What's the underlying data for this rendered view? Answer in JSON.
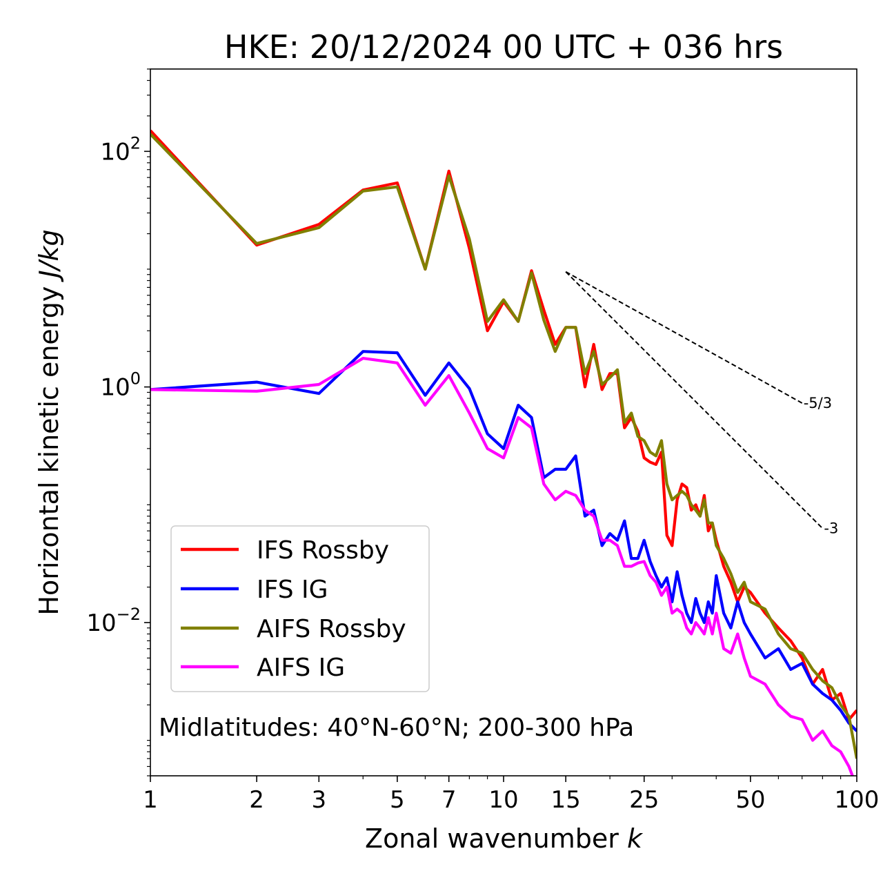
{
  "chart_data": {
    "type": "line",
    "title": "HKE: 20/12/2024 00 UTC + 036 hrs",
    "xlabel": "Zonal wavenumber ",
    "xlabel_italic": "k",
    "ylabel": "Horizontal kinetic energy ",
    "ylabel_italic": "J/kg",
    "xscale": "log",
    "yscale": "log",
    "xlim": [
      1,
      100
    ],
    "ylim": [
      0.0005,
      500
    ],
    "x_ticks": [
      1,
      2,
      3,
      5,
      7,
      10,
      15,
      25,
      50,
      100
    ],
    "x_tick_labels": [
      "1",
      "2",
      "3",
      "5",
      "7",
      "10",
      "15",
      "25",
      "50",
      "100"
    ],
    "y_ticks": [
      100,
      1,
      0.01
    ],
    "y_tick_labels": [
      {
        "base": "10",
        "exp": "2"
      },
      {
        "base": "10",
        "exp": "0"
      },
      {
        "base": "10",
        "exp": "−2"
      }
    ],
    "annotation": "Midlatitudes: 40°N-60°N; 200-300 hPa",
    "legend_position": "lower-left",
    "series": [
      {
        "name": "IFS Rossby",
        "color": "#ff0000",
        "x": [
          1,
          2,
          3,
          4,
          5,
          6,
          7,
          8,
          9,
          10,
          11,
          12,
          13,
          14,
          15,
          16,
          17,
          18,
          19,
          20,
          21,
          22,
          23,
          24,
          25,
          26,
          27,
          28,
          29,
          30,
          31,
          32,
          33,
          34,
          35,
          36,
          37,
          38,
          39,
          40,
          42,
          44,
          46,
          48,
          50,
          55,
          60,
          65,
          70,
          75,
          80,
          85,
          90,
          95,
          100
        ],
        "y": [
          150,
          16,
          24,
          47,
          54,
          10,
          68,
          15,
          3.0,
          5.3,
          3.6,
          9.7,
          4.5,
          2.3,
          3.2,
          3.2,
          1.0,
          2.3,
          0.95,
          1.3,
          1.3,
          0.45,
          0.55,
          0.42,
          0.25,
          0.23,
          0.22,
          0.28,
          0.055,
          0.045,
          0.11,
          0.15,
          0.14,
          0.09,
          0.1,
          0.08,
          0.12,
          0.06,
          0.07,
          0.05,
          0.03,
          0.022,
          0.015,
          0.02,
          0.018,
          0.012,
          0.009,
          0.007,
          0.005,
          0.003,
          0.004,
          0.0022,
          0.0025,
          0.0015,
          0.0018
        ]
      },
      {
        "name": "IFS IG",
        "color": "#0000ff",
        "x": [
          1,
          2,
          3,
          4,
          5,
          6,
          7,
          8,
          9,
          10,
          11,
          12,
          13,
          14,
          15,
          16,
          17,
          18,
          19,
          20,
          21,
          22,
          23,
          24,
          25,
          26,
          27,
          28,
          29,
          30,
          31,
          32,
          33,
          34,
          35,
          36,
          37,
          38,
          39,
          40,
          42,
          44,
          46,
          48,
          50,
          55,
          60,
          65,
          70,
          75,
          80,
          85,
          90,
          95,
          100
        ],
        "y": [
          0.95,
          1.1,
          0.88,
          2.0,
          1.95,
          0.85,
          1.6,
          0.97,
          0.4,
          0.3,
          0.7,
          0.55,
          0.17,
          0.2,
          0.2,
          0.26,
          0.08,
          0.09,
          0.045,
          0.057,
          0.05,
          0.073,
          0.035,
          0.035,
          0.05,
          0.033,
          0.025,
          0.02,
          0.024,
          0.015,
          0.027,
          0.017,
          0.012,
          0.01,
          0.016,
          0.012,
          0.01,
          0.015,
          0.012,
          0.025,
          0.012,
          0.009,
          0.015,
          0.01,
          0.008,
          0.005,
          0.006,
          0.004,
          0.0045,
          0.003,
          0.0025,
          0.0022,
          0.0018,
          0.0014,
          0.0012
        ]
      },
      {
        "name": "AIFS Rossby",
        "color": "#808000",
        "x": [
          1,
          2,
          3,
          4,
          5,
          6,
          7,
          8,
          9,
          10,
          11,
          12,
          13,
          14,
          15,
          16,
          17,
          18,
          19,
          20,
          21,
          22,
          23,
          24,
          25,
          26,
          27,
          28,
          29,
          30,
          31,
          32,
          33,
          34,
          35,
          36,
          37,
          38,
          39,
          40,
          42,
          44,
          46,
          48,
          50,
          55,
          60,
          65,
          70,
          75,
          80,
          85,
          90,
          95,
          100
        ],
        "y": [
          140,
          16.5,
          22.5,
          46,
          50,
          10,
          62,
          18,
          3.6,
          5.5,
          3.6,
          9.3,
          3.7,
          2.0,
          3.2,
          3.2,
          1.3,
          2.0,
          1.05,
          1.2,
          1.4,
          0.5,
          0.6,
          0.38,
          0.35,
          0.28,
          0.26,
          0.35,
          0.15,
          0.11,
          0.12,
          0.13,
          0.12,
          0.1,
          0.09,
          0.08,
          0.11,
          0.07,
          0.07,
          0.045,
          0.035,
          0.026,
          0.018,
          0.022,
          0.015,
          0.013,
          0.008,
          0.006,
          0.0055,
          0.004,
          0.0032,
          0.0028,
          0.002,
          0.0016,
          0.0007
        ]
      },
      {
        "name": "AIFS IG",
        "color": "#ff00ff",
        "x": [
          1,
          2,
          3,
          4,
          5,
          6,
          7,
          8,
          9,
          10,
          11,
          12,
          13,
          14,
          15,
          16,
          17,
          18,
          19,
          20,
          21,
          22,
          23,
          24,
          25,
          26,
          27,
          28,
          29,
          30,
          31,
          32,
          33,
          34,
          35,
          36,
          37,
          38,
          39,
          40,
          42,
          44,
          46,
          48,
          50,
          55,
          60,
          65,
          70,
          75,
          80,
          85,
          90,
          95,
          100
        ],
        "y": [
          0.95,
          0.92,
          1.05,
          1.75,
          1.6,
          0.7,
          1.25,
          0.6,
          0.3,
          0.25,
          0.55,
          0.45,
          0.15,
          0.11,
          0.13,
          0.12,
          0.09,
          0.08,
          0.05,
          0.05,
          0.045,
          0.03,
          0.03,
          0.032,
          0.033,
          0.025,
          0.022,
          0.017,
          0.02,
          0.012,
          0.013,
          0.012,
          0.009,
          0.008,
          0.01,
          0.009,
          0.008,
          0.011,
          0.008,
          0.012,
          0.006,
          0.0055,
          0.008,
          0.005,
          0.0035,
          0.003,
          0.002,
          0.0016,
          0.0015,
          0.001,
          0.0012,
          0.0009,
          0.0008,
          0.0006,
          0.0004
        ]
      }
    ],
    "reference_lines": [
      {
        "label": "-5/3",
        "slope": -1.6667,
        "x_start": 15,
        "y_start": 9.5,
        "x_end": 70,
        "y_end": 0.73
      },
      {
        "label": "-3",
        "slope": -3,
        "x_start": 15,
        "y_start": 9.5,
        "x_end": 80,
        "y_end": 0.063
      }
    ]
  }
}
